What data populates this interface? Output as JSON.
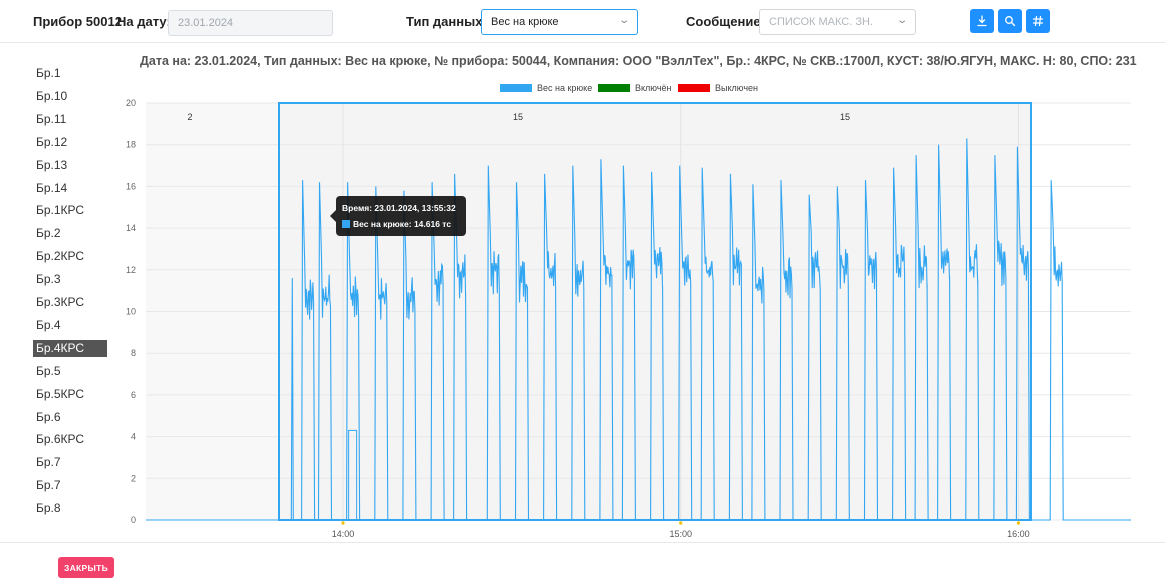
{
  "header": {
    "device_label": "Прибор 50012",
    "date_label": "На дату:",
    "date_value": "23.01.2024",
    "data_type_label": "Тип данных:",
    "data_type_value": "Вес на крюке",
    "message_label": "Сообщение:",
    "message_placeholder": "СПИСОК МАКС. ЗН.",
    "buttons": {
      "download": "download-icon",
      "zoom": "zoom-icon",
      "hash": "hash-icon"
    }
  },
  "sidebar": {
    "items": [
      "Бр.1",
      "Бр.10",
      "Бр.11",
      "Бр.12",
      "Бр.13",
      "Бр.14",
      "Бр.1КРС",
      "Бр.2",
      "Бр.2КРС",
      "Бр.3",
      "Бр.3КРС",
      "Бр.4",
      "Бр.4КРС",
      "Бр.5",
      "Бр.5КРС",
      "Бр.6",
      "Бр.6КРС",
      "Бр.7",
      "Бр.7",
      "Бр.8"
    ],
    "active_index": 12
  },
  "tooltip": {
    "time": "Время: 23.01.2024, 13:55:32",
    "value": "Вес на крюке: 14.616 тс"
  },
  "footer": {
    "close_label": "ЗАКРЫТЬ"
  },
  "colors": {
    "accent": "#1e90ff",
    "series": "#33a6f2",
    "on": "#008000",
    "off": "#ee0000",
    "close": "#f2416b"
  },
  "chart_data": {
    "type": "line",
    "title": "Дата на: 23.01.2024, Тип данных: Вес на крюке, № прибора: 50044, Компания: ООО \"ВэллТех\", Бр.: 4КРС, № СКВ.:1700Л, КУСТ: 38/Ю.ЯГУН, МАКС. Н: 80, СПО: 231",
    "legend": [
      {
        "name": "Вес на крюке",
        "color": "#33a6f2"
      },
      {
        "name": "Включён",
        "color": "#008000"
      },
      {
        "name": "Выключен",
        "color": "#ee0000"
      }
    ],
    "legend_position": "top-center",
    "x_ticks": [
      "14:00",
      "15:00",
      "16:00"
    ],
    "x_range": [
      "13:25",
      "16:20"
    ],
    "y_ticks": [
      0,
      2,
      4,
      6,
      8,
      10,
      12,
      14,
      16,
      18,
      20
    ],
    "ylim": [
      0,
      20
    ],
    "grid": true,
    "zone_labels": [
      "2",
      "15",
      "15"
    ],
    "spike_times": [
      "13:51",
      "13:53",
      "13:56",
      "14:01",
      "14:06",
      "14:11",
      "14:16",
      "14:20",
      "14:26",
      "14:31",
      "14:36",
      "14:41",
      "14:46",
      "14:50",
      "14:55",
      "15:00",
      "15:04",
      "15:09",
      "15:13",
      "15:18",
      "15:23",
      "15:28",
      "15:33",
      "15:38",
      "15:42",
      "15:46",
      "15:51",
      "15:56",
      "16:00",
      "16:06"
    ],
    "spike_peaks": [
      11.6,
      16.3,
      16.2,
      16.2,
      16.0,
      15.8,
      16.2,
      16.6,
      17.0,
      16.2,
      16.6,
      17.0,
      17.3,
      17.0,
      16.7,
      17.0,
      16.9,
      16.6,
      16.1,
      16.3,
      15.6,
      16.0,
      16.3,
      16.9,
      17.5,
      18.0,
      18.3,
      17.5,
      17.9,
      16.3
    ],
    "spike_plateaus": [
      null,
      11.0,
      11.1,
      11.0,
      11.0,
      11.0,
      11.6,
      12.1,
      12.2,
      11.9,
      12.4,
      12.1,
      12.4,
      12.4,
      12.4,
      12.2,
      12.4,
      12.5,
      11.8,
      12.1,
      12.3,
      12.4,
      12.4,
      12.6,
      12.5,
      12.9,
      12.7,
      12.7,
      12.9,
      12.5
    ]
  }
}
